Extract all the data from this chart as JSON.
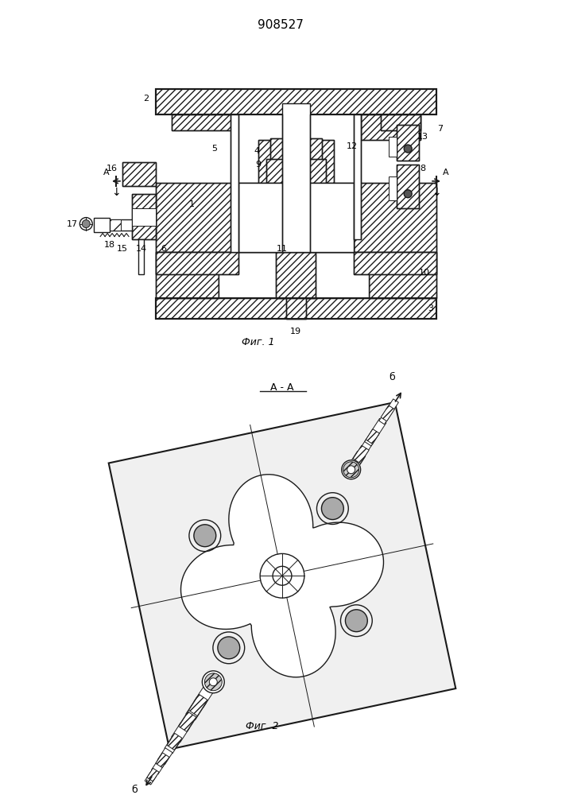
{
  "title": "908527",
  "fig1_caption": "Фиг. 1",
  "fig2_caption": "Фиг. 2",
  "fig2_title": "А - А",
  "line_color": "#1a1a1a"
}
